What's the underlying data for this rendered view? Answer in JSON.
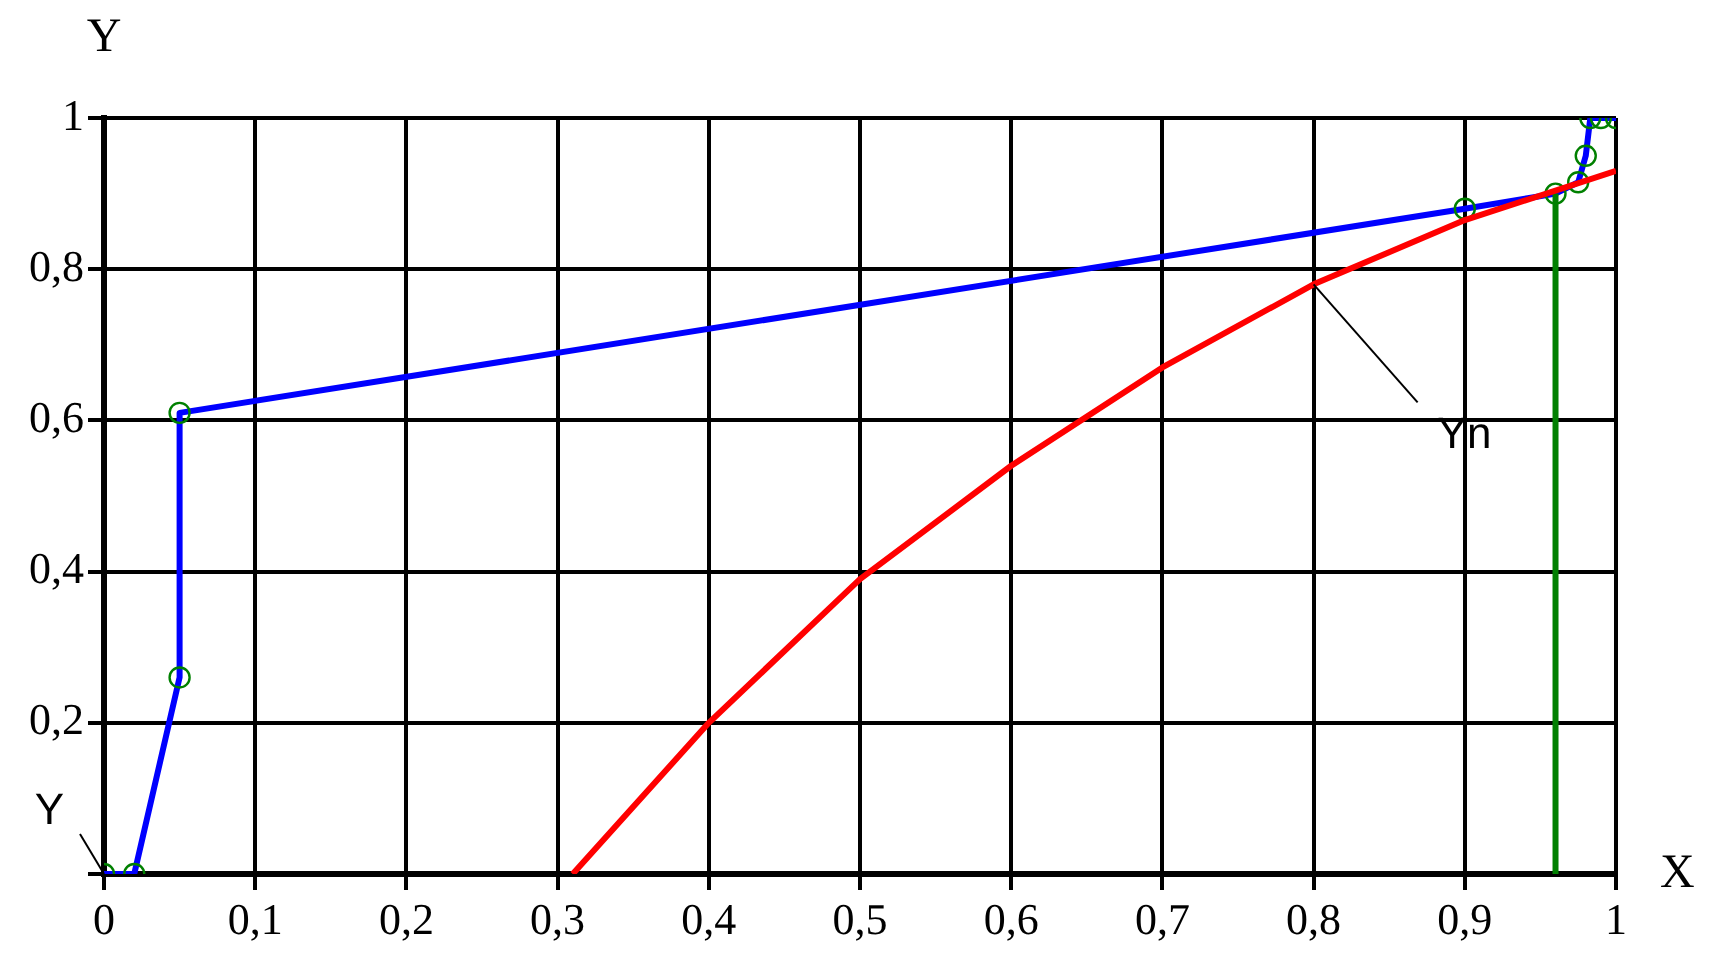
{
  "chart_data": {
    "type": "line",
    "xlabel": "X",
    "ylabel": "Y",
    "xlim": [
      0,
      1
    ],
    "ylim": [
      0,
      1
    ],
    "xticks": [
      {
        "value": 0,
        "label": "0"
      },
      {
        "value": 0.1,
        "label": "0,1"
      },
      {
        "value": 0.2,
        "label": "0,2"
      },
      {
        "value": 0.3,
        "label": "0,3"
      },
      {
        "value": 0.4,
        "label": "0,4"
      },
      {
        "value": 0.5,
        "label": "0,5"
      },
      {
        "value": 0.6,
        "label": "0,6"
      },
      {
        "value": 0.7,
        "label": "0,7"
      },
      {
        "value": 0.8,
        "label": "0,8"
      },
      {
        "value": 0.9,
        "label": "0,9"
      },
      1
    ],
    "yticks": [
      {
        "value": 0,
        "label": null
      },
      {
        "value": 0.2,
        "label": "0,2"
      },
      {
        "value": 0.4,
        "label": "0,4"
      },
      {
        "value": 0.6,
        "label": "0,6"
      },
      {
        "value": 0.8,
        "label": "0,8"
      },
      1
    ],
    "grid": true,
    "legend": false,
    "series": [
      {
        "color": "#ff0000",
        "x": [
          0.31,
          0.4,
          0.5,
          0.6,
          0.7,
          0.8,
          0.9,
          1
        ],
        "values": [
          0,
          0.2,
          0.39,
          0.54,
          0.67,
          0.78,
          0.865,
          0.93
        ]
      },
      {
        "color": "#008000",
        "x": [
          0.96,
          0.96
        ],
        "values": [
          0,
          0.9
        ]
      },
      {
        "color": "#0000ff",
        "marker": "circle",
        "x": [
          0,
          0.02,
          0.05,
          0.05,
          0.9,
          0.96,
          0.975,
          0.98,
          0.983,
          0.99,
          1
        ],
        "values": [
          0,
          0,
          0.26,
          0.61,
          0.88,
          0.9,
          0.915,
          0.95,
          1,
          1,
          1
        ]
      }
    ],
    "annotations": [
      {
        "text": "Yn",
        "x": 0.8,
        "y": 0.78
      },
      {
        "text": "Y",
        "x": 0,
        "y": 0
      }
    ]
  }
}
